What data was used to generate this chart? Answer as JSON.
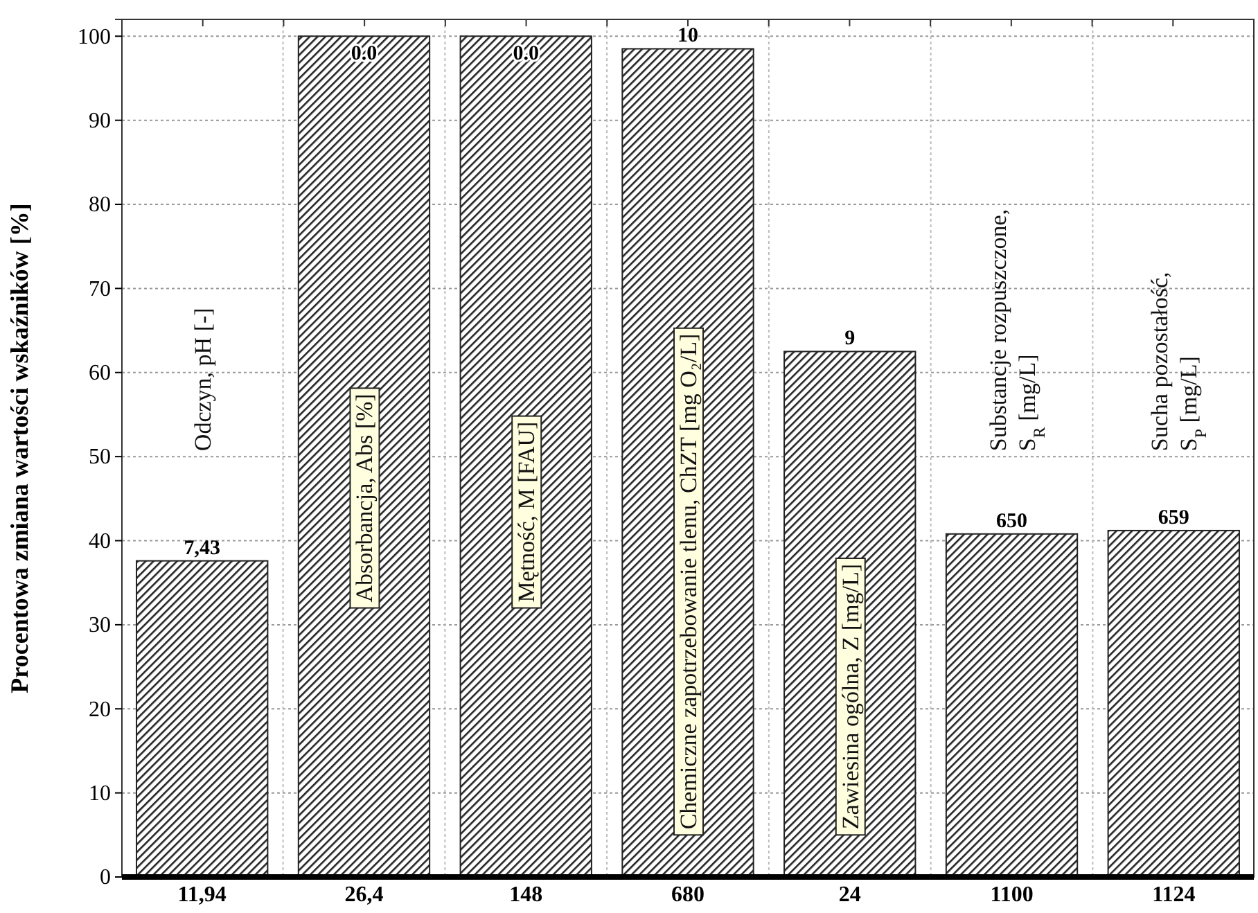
{
  "chart_data": {
    "type": "bar",
    "ylabel": "Procentowa zmiana wartości wskaźników [%]",
    "categories": [
      "11,94",
      "26,4",
      "148",
      "680",
      "24",
      "1100",
      "1124"
    ],
    "values": [
      37.6,
      100,
      100,
      98.5,
      62.5,
      40.8,
      41.2
    ],
    "color": "#222222",
    "ylim": [
      0,
      102
    ],
    "yticks": [
      0,
      10,
      20,
      30,
      40,
      50,
      60,
      70,
      80,
      90,
      100
    ],
    "grid": true,
    "annotations": [
      "Odczyn, pH [-]",
      "Absorbancja, Abs [%]",
      "Mętność, M [FAU]",
      "Chemiczne zapotrzebowanie tlenu, ChZT [mg O₂/L]",
      "Zawiesina ogólna, Z [mg/L]",
      "Substancje rozpuszczone,\nS$_{R}$ [mg/L]",
      "Sucha pozostałość,\nS$_{P}$ [mg/L]",
      {
        "text": "7,43",
        "x": "11,94",
        "y": 37.6
      },
      {
        "text": "0.0",
        "x": "26,4",
        "y": 100
      },
      {
        "text": "0.0",
        "x": "148",
        "y": 100
      },
      {
        "text": "10",
        "x": "680",
        "y": 98.5
      },
      {
        "text": "9",
        "x": "24",
        "y": 62.5
      },
      {
        "text": "650",
        "x": "1100",
        "y": 40.8
      },
      {
        "text": "659",
        "x": "1124",
        "y": 41.2
      }
    ]
  }
}
